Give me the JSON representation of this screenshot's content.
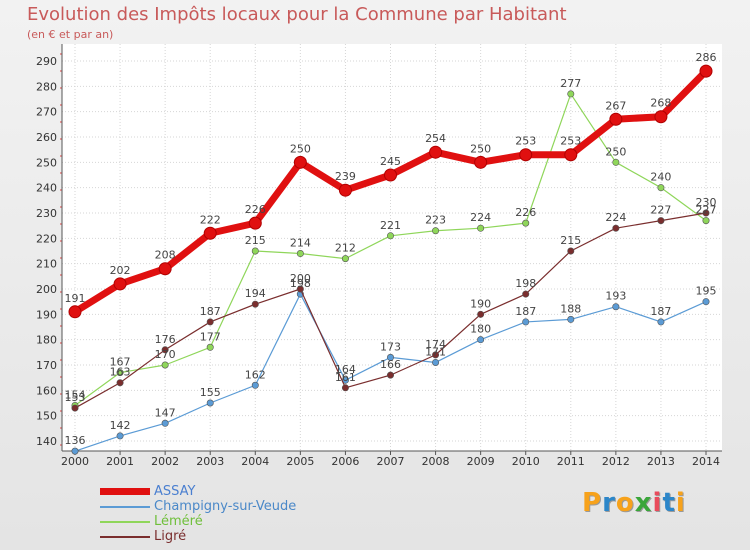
{
  "title": "Evolution des Impôts locaux pour la Commune par Habitant",
  "subtitle": "(en € et par an)",
  "logo": {
    "letters": [
      "P",
      "r",
      "o",
      "x",
      "i",
      "t",
      "i"
    ],
    "colors": [
      "#f7a21b",
      "#2c86c9",
      "#f7a21b",
      "#3aa63a",
      "#e94b5c",
      "#2c86c9",
      "#f7a21b"
    ]
  },
  "chart_data": {
    "type": "line",
    "x": [
      "2000",
      "2001",
      "2002",
      "2003",
      "2004",
      "2005",
      "2006",
      "2007",
      "2008",
      "2009",
      "2010",
      "2011",
      "2012",
      "2013",
      "2014"
    ],
    "ylim": [
      130,
      295
    ],
    "yticks": [
      140,
      150,
      160,
      170,
      180,
      190,
      200,
      210,
      220,
      230,
      240,
      250,
      260,
      270,
      280,
      290
    ],
    "grid": true,
    "legend_position": "bottom-left",
    "series": [
      {
        "name": "Champigny-sur-Veude",
        "color": "#5b9bd5",
        "values": [
          136,
          142,
          147,
          155,
          162,
          198,
          164,
          173,
          171,
          180,
          187,
          188,
          193,
          187,
          195
        ],
        "labels": [
          "136",
          "142",
          "147",
          "155",
          "162",
          "198",
          "164",
          "173",
          "171",
          "180",
          "187",
          "188",
          "193",
          "187",
          "195"
        ]
      },
      {
        "name": "Léméré",
        "color": "#8fd65a",
        "values": [
          154,
          167,
          170,
          177,
          215,
          214,
          212,
          221,
          223,
          224,
          226,
          277,
          250,
          240,
          227
        ],
        "labels": [
          "154",
          "167",
          "170",
          "177",
          "215",
          "214",
          "212",
          "221",
          "223",
          "224",
          "226",
          "277",
          "250",
          "240",
          "227"
        ]
      },
      {
        "name": "Ligré",
        "color": "#7a2e2e",
        "values": [
          153,
          163,
          176,
          187,
          194,
          200,
          161,
          166,
          174,
          190,
          198,
          215,
          224,
          227,
          230
        ],
        "labels": [
          "153",
          "163",
          "176",
          "187",
          "194",
          "200",
          "161",
          "166",
          "174",
          "190",
          "198",
          "215",
          "224",
          "227",
          "230"
        ]
      },
      {
        "name": "ASSAY",
        "color": "#e01010",
        "values": [
          191,
          202,
          208,
          222,
          226,
          250,
          239,
          245,
          254,
          250,
          253,
          253,
          267,
          268,
          286
        ],
        "labels": [
          "191",
          "202",
          "208",
          "222",
          "226",
          "250",
          "239",
          "245",
          "254",
          "250",
          "253",
          "253",
          "267",
          "268",
          "286"
        ]
      }
    ]
  }
}
